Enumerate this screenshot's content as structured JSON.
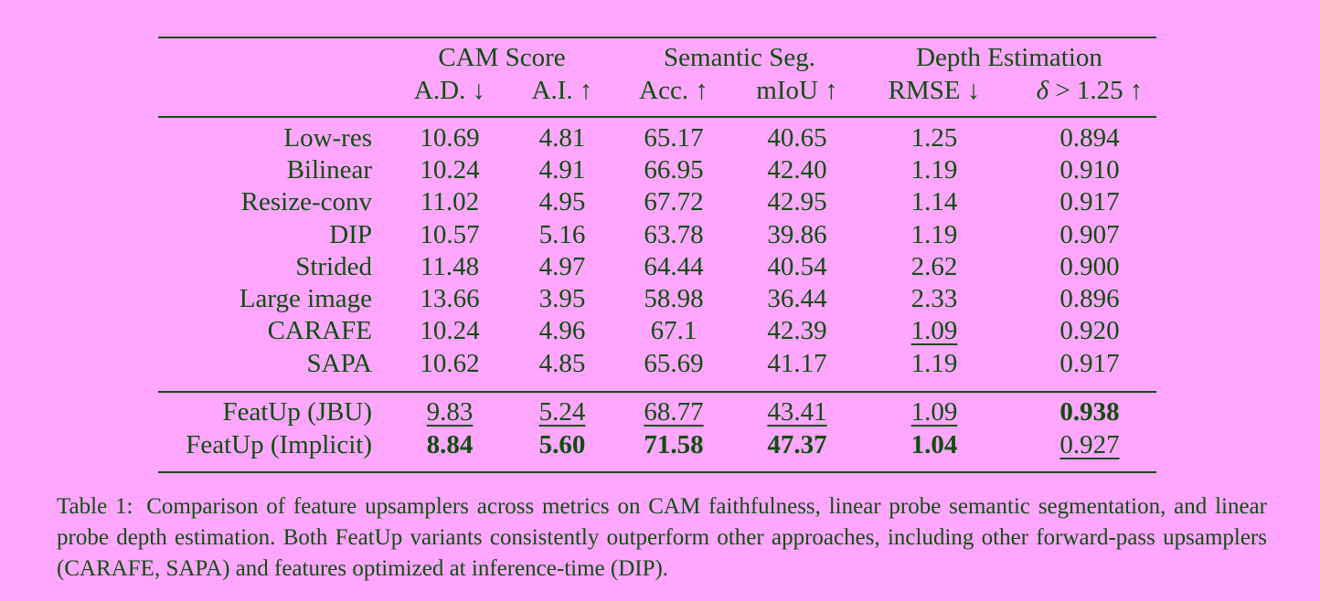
{
  "table": {
    "groups": [
      {
        "label": "CAM Score"
      },
      {
        "label": "Semantic Seg."
      },
      {
        "label": "Depth Estimation"
      }
    ],
    "columns": [
      {
        "label": "A.D. ↓"
      },
      {
        "label": "A.I. ↑"
      },
      {
        "label": "Acc. ↑"
      },
      {
        "label": "mIoU ↑"
      },
      {
        "label": "RMSE ↓"
      },
      {
        "label_prefix": "δ",
        "label_suffix": " > 1.25 ↑"
      }
    ],
    "rows": [
      {
        "method": "Low-res",
        "values": [
          "10.69",
          "4.81",
          "65.17",
          "40.65",
          "1.25",
          "0.894"
        ],
        "styles": [
          "",
          "",
          "",
          "",
          "",
          ""
        ]
      },
      {
        "method": "Bilinear",
        "values": [
          "10.24",
          "4.91",
          "66.95",
          "42.40",
          "1.19",
          "0.910"
        ],
        "styles": [
          "",
          "",
          "",
          "",
          "",
          ""
        ]
      },
      {
        "method": "Resize-conv",
        "values": [
          "11.02",
          "4.95",
          "67.72",
          "42.95",
          "1.14",
          "0.917"
        ],
        "styles": [
          "",
          "",
          "",
          "",
          "",
          ""
        ]
      },
      {
        "method": "DIP",
        "values": [
          "10.57",
          "5.16",
          "63.78",
          "39.86",
          "1.19",
          "0.907"
        ],
        "styles": [
          "",
          "",
          "",
          "",
          "",
          ""
        ]
      },
      {
        "method": "Strided",
        "values": [
          "11.48",
          "4.97",
          "64.44",
          "40.54",
          "2.62",
          "0.900"
        ],
        "styles": [
          "",
          "",
          "",
          "",
          "",
          ""
        ]
      },
      {
        "method": "Large image",
        "values": [
          "13.66",
          "3.95",
          "58.98",
          "36.44",
          "2.33",
          "0.896"
        ],
        "styles": [
          "",
          "",
          "",
          "",
          "",
          ""
        ]
      },
      {
        "method": "CARAFE",
        "values": [
          "10.24",
          "4.96",
          "67.1",
          "42.39",
          "1.09",
          "0.920"
        ],
        "styles": [
          "",
          "",
          "",
          "",
          "ul",
          ""
        ]
      },
      {
        "method": "SAPA",
        "values": [
          "10.62",
          "4.85",
          "65.69",
          "41.17",
          "1.19",
          "0.917"
        ],
        "styles": [
          "",
          "",
          "",
          "",
          "",
          ""
        ]
      },
      {
        "method": "FeatUp (JBU)",
        "values": [
          "9.83",
          "5.24",
          "68.77",
          "43.41",
          "1.09",
          "0.938"
        ],
        "styles": [
          "ul",
          "ul",
          "ul",
          "ul",
          "ul",
          "bold"
        ]
      },
      {
        "method": "FeatUp (Implicit)",
        "values": [
          "8.84",
          "5.60",
          "71.58",
          "47.37",
          "1.04",
          "0.927"
        ],
        "styles": [
          "bold",
          "bold",
          "bold",
          "bold",
          "bold",
          "ul"
        ]
      }
    ]
  },
  "caption": {
    "label": "Table 1:",
    "text": "Comparison of feature upsamplers across metrics on CAM faithfulness, linear probe semantic segmentation, and linear probe depth estimation. Both FeatUp variants consistently outperform other approaches, including other forward-pass upsamplers (CARAFE, SAPA) and features optimized at inference-time (DIP)."
  }
}
